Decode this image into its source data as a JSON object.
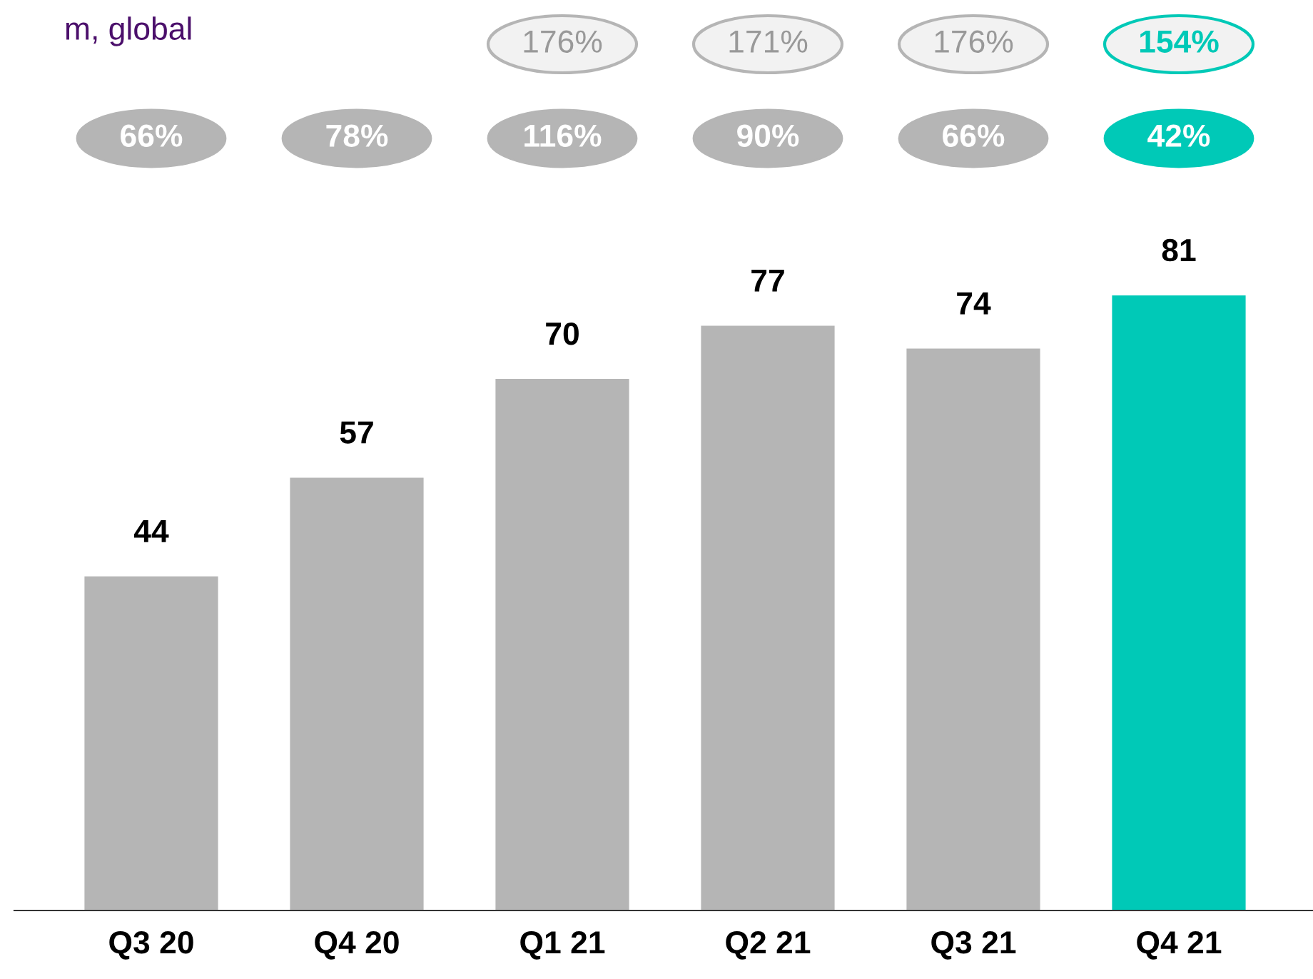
{
  "chart_data": {
    "type": "bar",
    "title": "m, global",
    "categories": [
      "Q3 20",
      "Q4 20",
      "Q1 21",
      "Q2 21",
      "Q3 21",
      "Q4 21"
    ],
    "values": [
      44,
      57,
      70,
      77,
      74,
      81
    ],
    "colors": [
      "#b5b5b5",
      "#b5b5b5",
      "#b5b5b5",
      "#b5b5b5",
      "#b5b5b5",
      "#00c9b7"
    ],
    "data_labels": true,
    "annotations": [
      "176%",
      "171%",
      "176%",
      "154%",
      "66%",
      "78%",
      "116%",
      "90%",
      "66%",
      "42%"
    ]
  }
}
